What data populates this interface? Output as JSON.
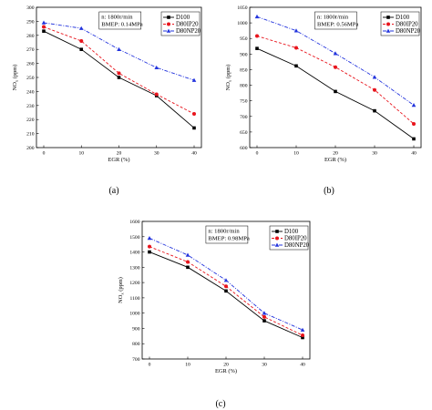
{
  "chart_data": [
    {
      "type": "line",
      "caption": "(a)",
      "x": [
        0,
        10,
        20,
        30,
        40
      ],
      "xlabel": "EGR (%)",
      "ylabel": "NOx (ppm)",
      "ylim": [
        200,
        300
      ],
      "yticks": [
        200,
        210,
        220,
        230,
        240,
        250,
        260,
        270,
        280,
        290,
        300
      ],
      "annotation": [
        "n: 1800r/min",
        "BMEP: 0.14MPa"
      ],
      "legend_position": "top-right",
      "series": [
        {
          "name": "D100",
          "color": "#000000",
          "dash": "solid",
          "marker": "square",
          "values": [
            283,
            270,
            250,
            237,
            214
          ]
        },
        {
          "name": "D80IP20",
          "color": "#e8141c",
          "dash": "dashed",
          "marker": "circle",
          "values": [
            286,
            276,
            253,
            238,
            224
          ]
        },
        {
          "name": "D80NP20",
          "color": "#2233dd",
          "dash": "dashdot",
          "marker": "triangle",
          "values": [
            289,
            285,
            270,
            257,
            248
          ]
        }
      ]
    },
    {
      "type": "line",
      "caption": "(b)",
      "x": [
        0,
        10,
        20,
        30,
        40
      ],
      "xlabel": "EGR (%)",
      "ylabel": "NOx (ppm)",
      "ylim": [
        600,
        1050
      ],
      "yticks": [
        600,
        650,
        700,
        750,
        800,
        850,
        900,
        950,
        1000,
        1050
      ],
      "annotation": [
        "n: 1800r/min",
        "BMEP: 0.56MPa"
      ],
      "legend_position": "top-right",
      "series": [
        {
          "name": "D100",
          "color": "#000000",
          "dash": "solid",
          "marker": "square",
          "values": [
            918,
            862,
            780,
            718,
            628
          ]
        },
        {
          "name": "D80IP20",
          "color": "#e8141c",
          "dash": "dashed",
          "marker": "circle",
          "values": [
            958,
            920,
            858,
            785,
            676
          ]
        },
        {
          "name": "D80NP20",
          "color": "#2233dd",
          "dash": "dashdot",
          "marker": "triangle",
          "values": [
            1020,
            975,
            902,
            826,
            736
          ]
        }
      ]
    },
    {
      "type": "line",
      "caption": "(c)",
      "x": [
        0,
        10,
        20,
        30,
        40
      ],
      "xlabel": "EGR (%)",
      "ylabel": "NOx (ppm)",
      "ylim": [
        700,
        1600
      ],
      "yticks": [
        700,
        800,
        900,
        1000,
        1100,
        1200,
        1300,
        1400,
        1500,
        1600
      ],
      "annotation": [
        "n: 1800r/min",
        "BMEP: 0.98MPa"
      ],
      "legend_position": "top-right",
      "series": [
        {
          "name": "D100",
          "color": "#000000",
          "dash": "solid",
          "marker": "square",
          "values": [
            1400,
            1300,
            1145,
            950,
            840
          ]
        },
        {
          "name": "D80IP20",
          "color": "#e8141c",
          "dash": "dashed",
          "marker": "circle",
          "values": [
            1435,
            1335,
            1175,
            975,
            855
          ]
        },
        {
          "name": "D80NP20",
          "color": "#2233dd",
          "dash": "dashdot",
          "marker": "triangle",
          "values": [
            1490,
            1380,
            1215,
            1000,
            890
          ]
        }
      ]
    }
  ]
}
